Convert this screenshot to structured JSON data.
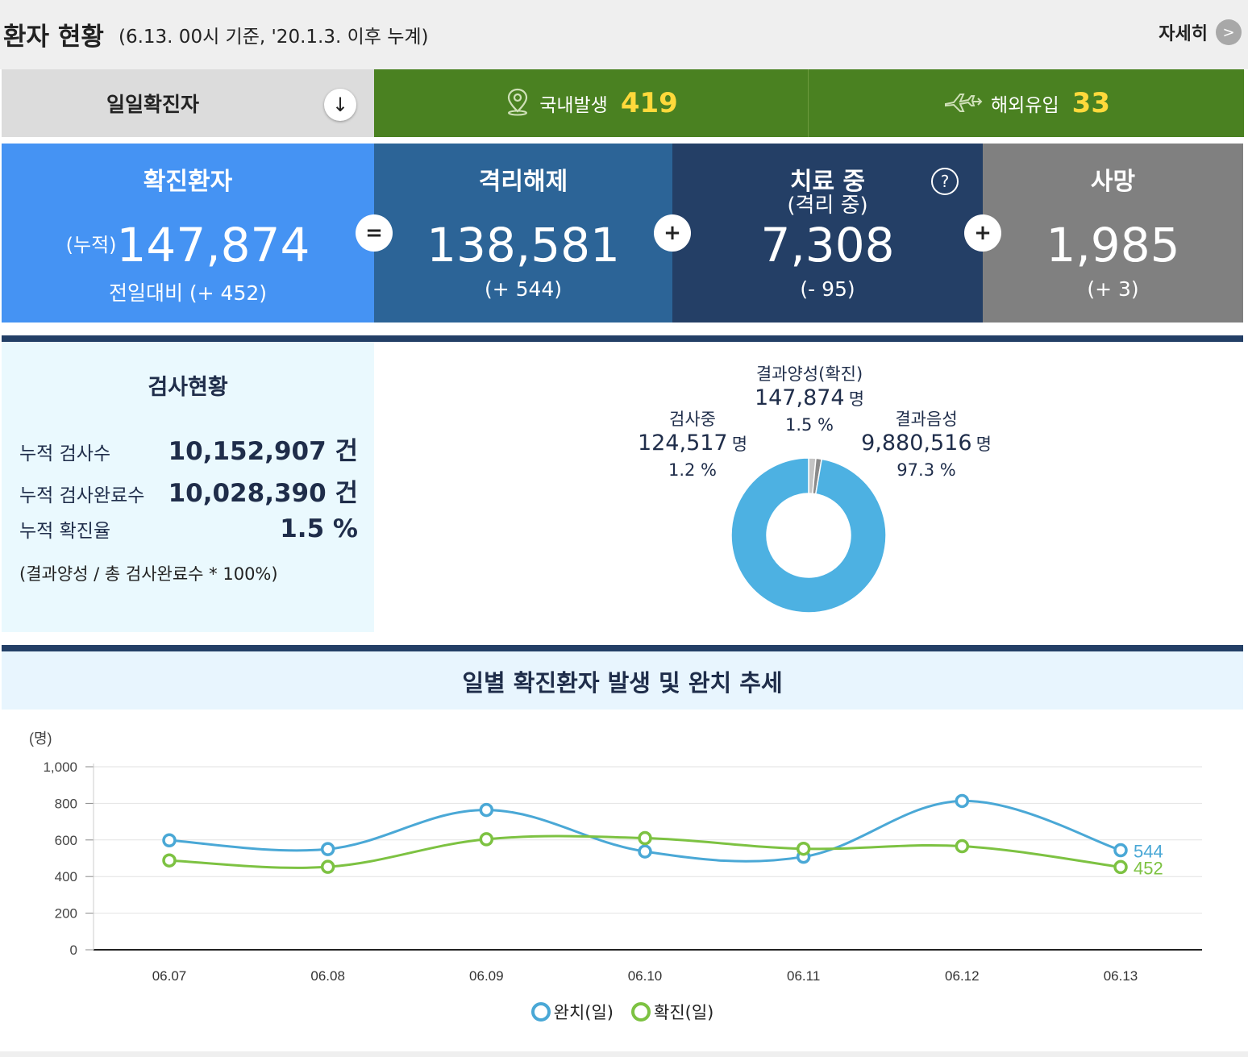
{
  "header": {
    "title": "환자 현황",
    "subtitle": "(6.13. 00시 기준, '20.1.3. 이후 누계)",
    "detail_label": "자세히",
    "detail_arrow": ">"
  },
  "daily": {
    "label": "일일확진자",
    "toggle": "↓",
    "domestic": {
      "label": "국내발생",
      "value": "419"
    },
    "overseas": {
      "label": "해외유입",
      "value": "33"
    }
  },
  "stats": {
    "confirmed": {
      "title": "확진환자",
      "prefix": "(누적)",
      "value": "147,874",
      "change": "전일대비 (+ 452)"
    },
    "released": {
      "title": "격리해제",
      "value": "138,581",
      "change": "(+ 544)"
    },
    "treatment": {
      "title": "치료 중",
      "title2": "(격리 중)",
      "value": "7,308",
      "change": "(- 95)",
      "help": "?"
    },
    "death": {
      "title": "사망",
      "value": "1,985",
      "change": "(+ 3)"
    },
    "op_equals": "=",
    "op_plus": "+"
  },
  "tests": {
    "title": "검사현황",
    "rows": [
      {
        "label": "누적 검사수",
        "value": "10,152,907 건"
      },
      {
        "label": "누적 검사완료수",
        "value": "10,028,390 건"
      },
      {
        "label": "누적 확진율",
        "value": "1.5 %"
      }
    ],
    "note": "(결과양성 / 총 검사완료수 * 100%)",
    "donut": [
      {
        "name": "결과양성(확진)",
        "count": "147,874",
        "unit": "명",
        "pct": "1.5 %",
        "pct_value": 1.5,
        "color": "#c4c4c4"
      },
      {
        "name": "검사중",
        "count": "124,517",
        "unit": "명",
        "pct": "1.2 %",
        "pct_value": 1.2,
        "color": "#8a8a8a"
      },
      {
        "name": "결과음성",
        "count": "9,880,516",
        "unit": "명",
        "pct": "97.3 %",
        "pct_value": 97.3,
        "color": "#4db1e2"
      }
    ]
  },
  "trend": {
    "title": "일별 확진환자 발생 및 완치 추세",
    "chart_data": {
      "type": "line",
      "ylabel": "(명)",
      "ylim": [
        0,
        1000
      ],
      "yticks": [
        "0",
        "200",
        "400",
        "600",
        "800",
        "1,000"
      ],
      "categories": [
        "06.07",
        "06.08",
        "06.09",
        "06.10",
        "06.11",
        "06.12",
        "06.13"
      ],
      "series": [
        {
          "name": "완치(일)",
          "color": "#4aa8d6",
          "values": [
            598,
            550,
            764,
            537,
            508,
            813,
            544
          ],
          "end_label": "544"
        },
        {
          "name": "확진(일)",
          "color": "#7dc242",
          "values": [
            488,
            453,
            604,
            610,
            552,
            566,
            452
          ],
          "end_label": "452"
        }
      ],
      "grid": true,
      "legend": "bottom-center"
    }
  }
}
